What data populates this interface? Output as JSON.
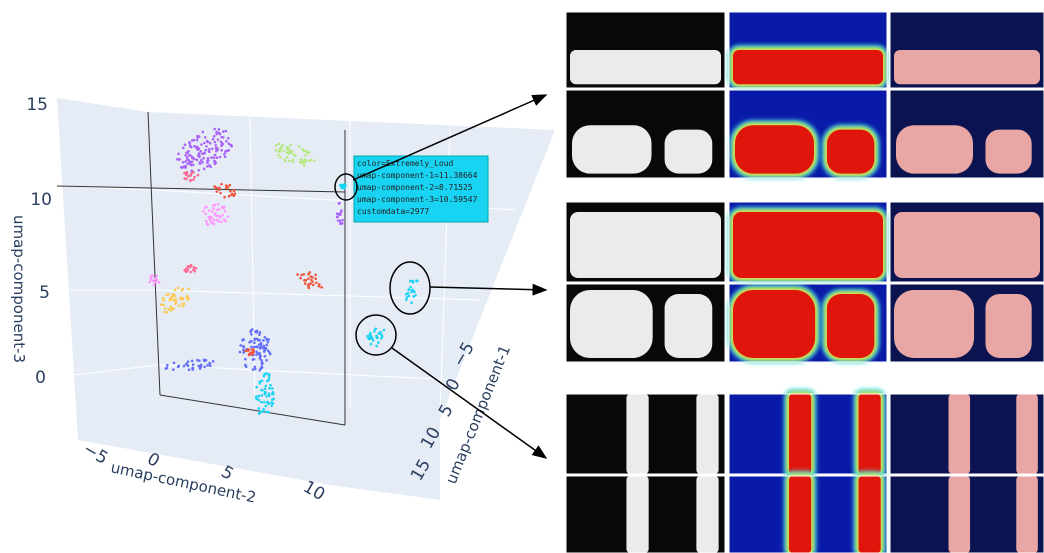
{
  "plot": {
    "axes": {
      "z": {
        "title": "umap-component-3",
        "ticks": [
          "15",
          "10",
          "5",
          "0"
        ]
      },
      "x": {
        "title": "umap-component-2",
        "ticks": [
          "−5",
          "0",
          "5",
          "10"
        ]
      },
      "y": {
        "title": "umap-component-1",
        "ticks": [
          "−5",
          "0",
          "5",
          "10",
          "15"
        ]
      }
    },
    "tooltip": [
      "color=Extremely_Loud",
      "umap-component-1=11.38664",
      "umap-component-2=8.71525",
      "umap-component-3=10.59547",
      "customdata=2977"
    ]
  }
}
